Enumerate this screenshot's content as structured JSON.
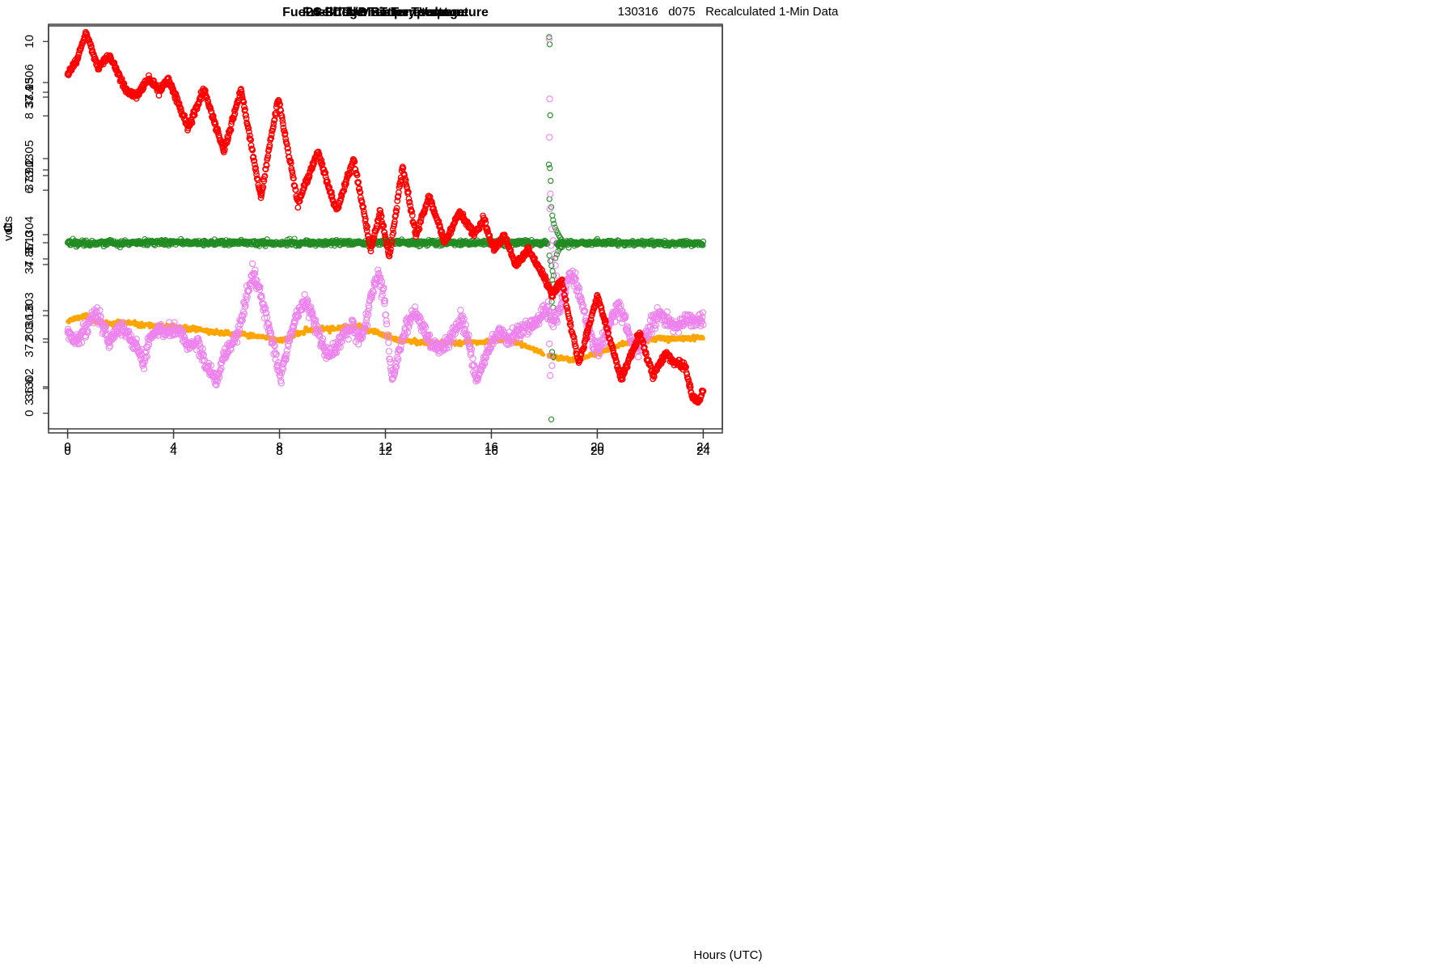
{
  "figure": {
    "title": "130316   d075   Recalculated 1-Min Data",
    "xlabel": "Hours (UTC)",
    "background": "#ffffff",
    "axis_color": "#3d3d3d"
  },
  "chart_data": [
    {
      "id": "fridge-temperature",
      "type": "scatter",
      "title": "Fridge Temperature",
      "ylabel": "C",
      "row": "top",
      "color": "#FFA500",
      "marker": "filled-circle",
      "marker_radius": 2.4,
      "stroke_width": 0,
      "samples_per_hour": 60,
      "noise_sigma": 0.03,
      "seed": 11,
      "xlim": [
        -0.72,
        24.72
      ],
      "xticks": [
        0,
        4,
        8,
        12,
        16,
        20,
        24
      ],
      "xtick_labels": [
        "0",
        "4",
        "8",
        "12",
        "16",
        "20",
        "24"
      ],
      "ylim": [
        -0.42,
        10.42
      ],
      "yticks": [
        0,
        2,
        4,
        6,
        8,
        10
      ],
      "ytick_labels": [
        "0",
        "2",
        "4",
        "6",
        "8",
        "10"
      ],
      "gaps": [
        [
          17.98,
          18.14
        ]
      ],
      "keypoints": [
        [
          0,
          2.5
        ],
        [
          0.2,
          2.53
        ],
        [
          0.45,
          2.58
        ],
        [
          0.65,
          2.62
        ],
        [
          0.9,
          2.55
        ],
        [
          1.15,
          2.46
        ],
        [
          1.35,
          2.42
        ],
        [
          1.6,
          2.4
        ],
        [
          1.85,
          2.44
        ],
        [
          2.1,
          2.43
        ],
        [
          2.4,
          2.42
        ],
        [
          2.7,
          2.38
        ],
        [
          3.0,
          2.35
        ],
        [
          3.3,
          2.34
        ],
        [
          3.6,
          2.32
        ],
        [
          3.9,
          2.33
        ],
        [
          4.2,
          2.3
        ],
        [
          4.5,
          2.26
        ],
        [
          4.75,
          2.29
        ],
        [
          5.05,
          2.25
        ],
        [
          5.35,
          2.2
        ],
        [
          5.65,
          2.17
        ],
        [
          5.95,
          2.16
        ],
        [
          6.25,
          2.12
        ],
        [
          6.55,
          2.11
        ],
        [
          6.85,
          2.1
        ],
        [
          7.15,
          2.06
        ],
        [
          7.45,
          2.04
        ],
        [
          7.8,
          1.97
        ],
        [
          8.1,
          1.98
        ],
        [
          8.4,
          2.05
        ],
        [
          8.7,
          2.14
        ],
        [
          9.0,
          2.21
        ],
        [
          9.3,
          2.25
        ],
        [
          9.6,
          2.27
        ],
        [
          9.9,
          2.27
        ],
        [
          10.2,
          2.28
        ],
        [
          10.5,
          2.3
        ],
        [
          10.75,
          2.33
        ],
        [
          11.1,
          2.3
        ],
        [
          11.4,
          2.22
        ],
        [
          11.7,
          2.16
        ],
        [
          12.0,
          2.1
        ],
        [
          12.3,
          2.02
        ],
        [
          12.6,
          1.97
        ],
        [
          12.9,
          1.94
        ],
        [
          13.2,
          1.92
        ],
        [
          13.5,
          1.9
        ],
        [
          13.8,
          1.88
        ],
        [
          14.1,
          1.9
        ],
        [
          14.4,
          1.92
        ],
        [
          14.7,
          1.89
        ],
        [
          15.0,
          1.91
        ],
        [
          15.3,
          1.92
        ],
        [
          15.6,
          1.91
        ],
        [
          15.9,
          1.93
        ],
        [
          16.2,
          1.97
        ],
        [
          16.45,
          2.0
        ],
        [
          16.75,
          1.95
        ],
        [
          17.05,
          1.87
        ],
        [
          17.35,
          1.79
        ],
        [
          17.65,
          1.71
        ],
        [
          17.95,
          1.62
        ],
        [
          18.15,
          1.53
        ],
        [
          18.45,
          1.51
        ],
        [
          18.75,
          1.48
        ],
        [
          19.0,
          1.45
        ],
        [
          19.3,
          1.46
        ],
        [
          19.6,
          1.52
        ],
        [
          19.9,
          1.6
        ],
        [
          20.2,
          1.68
        ],
        [
          20.5,
          1.76
        ],
        [
          20.8,
          1.83
        ],
        [
          21.1,
          1.88
        ],
        [
          21.4,
          1.93
        ],
        [
          21.7,
          1.96
        ],
        [
          22.0,
          1.99
        ],
        [
          22.3,
          2.01
        ],
        [
          22.6,
          2.01
        ],
        [
          22.9,
          2.0
        ],
        [
          23.2,
          2.01
        ],
        [
          23.5,
          2.03
        ],
        [
          23.8,
          2.04
        ],
        [
          24,
          2.05
        ]
      ],
      "outliers": []
    },
    {
      "id": "fuel-cell-mpt-temperature",
      "type": "scatter",
      "title": "Fuel Cell MPT Temperature",
      "ylabel": "C",
      "row": "top",
      "color": "#228B22",
      "marker": "open-circle",
      "marker_radius": 3.1,
      "stroke_width": 1.1,
      "samples_per_hour": 60,
      "noise_sigma": 0.0035,
      "seed": 22,
      "xlim": [
        -0.72,
        24.72
      ],
      "xticks": [
        0,
        4,
        8,
        12,
        16,
        20,
        24
      ],
      "xtick_labels": [
        "0",
        "4",
        "8",
        "12",
        "16",
        "20",
        "24"
      ],
      "ylim": [
        36.4889,
        37.5956
      ],
      "yticks": [
        36.6,
        36.8,
        37.0,
        37.2,
        37.4
      ],
      "ytick_labels": [
        "36.6",
        "36.8",
        "37.0",
        "37.2",
        "37.4"
      ],
      "gaps": [
        [
          18.12,
          18.45
        ]
      ],
      "keypoints": [
        [
          0,
          37.0
        ],
        [
          2,
          36.999
        ],
        [
          4,
          37.001
        ],
        [
          6,
          37.0
        ],
        [
          8,
          36.999
        ],
        [
          10,
          37.0
        ],
        [
          12,
          37.001
        ],
        [
          14,
          36.999
        ],
        [
          16,
          37.0
        ],
        [
          17.9,
          37.0
        ],
        [
          18.6,
          36.998
        ],
        [
          19,
          36.999
        ],
        [
          20,
          37.0
        ],
        [
          22,
          36.999
        ],
        [
          24,
          36.998
        ]
      ],
      "outliers": [
        [
          18.18,
          37.565
        ],
        [
          18.2,
          37.545
        ],
        [
          18.22,
          37.35
        ],
        [
          18.17,
          37.215
        ],
        [
          18.21,
          37.205
        ],
        [
          18.24,
          37.17
        ],
        [
          18.19,
          37.12
        ],
        [
          18.26,
          37.098
        ],
        [
          18.3,
          37.075
        ],
        [
          18.33,
          37.062
        ],
        [
          18.36,
          37.052
        ],
        [
          18.4,
          37.042
        ],
        [
          18.45,
          37.034
        ],
        [
          18.5,
          37.027
        ],
        [
          18.55,
          37.02
        ],
        [
          18.6,
          37.014
        ],
        [
          18.65,
          37.009
        ],
        [
          18.19,
          36.965
        ],
        [
          18.23,
          36.95
        ],
        [
          18.27,
          36.937
        ],
        [
          18.31,
          36.922
        ],
        [
          18.35,
          36.91
        ],
        [
          18.3,
          36.898
        ],
        [
          18.34,
          36.886
        ],
        [
          18.38,
          36.873
        ],
        [
          18.28,
          36.838
        ],
        [
          18.33,
          36.822
        ],
        [
          18.24,
          36.795
        ],
        [
          18.29,
          36.7
        ],
        [
          18.34,
          36.686
        ],
        [
          18.26,
          36.515
        ],
        [
          18.42,
          36.958
        ],
        [
          18.47,
          36.968
        ],
        [
          18.52,
          36.977
        ],
        [
          18.58,
          36.984
        ],
        [
          18.63,
          36.99
        ]
      ]
    },
    {
      "id": "fuel-cell-thermistor-temperature",
      "type": "scatter",
      "title": "Fuel Cell Thermistor Temperature",
      "ylabel": "C",
      "row": "bottom",
      "color": "#EE82EE",
      "marker": "open-circle",
      "marker_radius": 3.6,
      "stroke_width": 1.1,
      "samples_per_hour": 60,
      "noise_sigma": 0.0022,
      "seed": 33,
      "xlim": [
        -0.72,
        24.72
      ],
      "xticks": [
        0,
        4,
        8,
        12,
        16,
        20,
        24
      ],
      "xtick_labels": [
        "0",
        "4",
        "8",
        "12",
        "16",
        "20",
        "24"
      ],
      "ylim": [
        37.7456,
        37.9908
      ],
      "yticks": [
        37.8,
        37.85,
        37.9,
        37.95
      ],
      "ytick_labels": [
        "37.80",
        "37.85",
        "37.90",
        "37.95"
      ],
      "gaps": [],
      "keypoints": [
        [
          0,
          37.806
        ],
        [
          0.3,
          37.8
        ],
        [
          0.6,
          37.806
        ],
        [
          0.9,
          37.814
        ],
        [
          1.1,
          37.818
        ],
        [
          1.35,
          37.808
        ],
        [
          1.6,
          37.8
        ],
        [
          1.9,
          37.81
        ],
        [
          2.15,
          37.807
        ],
        [
          2.45,
          37.8
        ],
        [
          2.7,
          37.793
        ],
        [
          2.9,
          37.788
        ],
        [
          3.1,
          37.803
        ],
        [
          3.4,
          37.808
        ],
        [
          3.7,
          37.806
        ],
        [
          4.0,
          37.808
        ],
        [
          4.3,
          37.806
        ],
        [
          4.6,
          37.797
        ],
        [
          4.9,
          37.8
        ],
        [
          5.15,
          37.79
        ],
        [
          5.45,
          37.78
        ],
        [
          5.65,
          37.776
        ],
        [
          5.9,
          37.792
        ],
        [
          6.2,
          37.799
        ],
        [
          6.5,
          37.808
        ],
        [
          6.8,
          37.83
        ],
        [
          7.0,
          37.841
        ],
        [
          7.2,
          37.833
        ],
        [
          7.5,
          37.816
        ],
        [
          7.8,
          37.796
        ],
        [
          8.05,
          37.778
        ],
        [
          8.35,
          37.8
        ],
        [
          8.65,
          37.816
        ],
        [
          8.95,
          37.825
        ],
        [
          9.25,
          37.816
        ],
        [
          9.55,
          37.801
        ],
        [
          9.85,
          37.791
        ],
        [
          10.15,
          37.797
        ],
        [
          10.45,
          37.807
        ],
        [
          10.75,
          37.81
        ],
        [
          11.05,
          37.801
        ],
        [
          11.35,
          37.818
        ],
        [
          11.6,
          37.836
        ],
        [
          11.75,
          37.84
        ],
        [
          11.95,
          37.828
        ],
        [
          12.1,
          37.8
        ],
        [
          12.25,
          37.776
        ],
        [
          12.5,
          37.794
        ],
        [
          12.8,
          37.81
        ],
        [
          13.1,
          37.818
        ],
        [
          13.4,
          37.809
        ],
        [
          13.7,
          37.8
        ],
        [
          14.0,
          37.795
        ],
        [
          14.3,
          37.798
        ],
        [
          14.6,
          37.806
        ],
        [
          14.9,
          37.814
        ],
        [
          15.15,
          37.8
        ],
        [
          15.45,
          37.776
        ],
        [
          15.7,
          37.788
        ],
        [
          16.0,
          37.8
        ],
        [
          16.3,
          37.807
        ],
        [
          16.6,
          37.801
        ],
        [
          16.9,
          37.804
        ],
        [
          17.2,
          37.809
        ],
        [
          17.5,
          37.811
        ],
        [
          17.8,
          37.814
        ],
        [
          18.0,
          37.818
        ],
        [
          18.15,
          37.82
        ],
        [
          18.35,
          37.812
        ],
        [
          18.6,
          37.82
        ],
        [
          18.8,
          37.833
        ],
        [
          19.0,
          37.841
        ],
        [
          19.15,
          37.838
        ],
        [
          19.35,
          37.828
        ],
        [
          19.6,
          37.812
        ],
        [
          19.85,
          37.797
        ],
        [
          20.1,
          37.797
        ],
        [
          20.35,
          37.806
        ],
        [
          20.6,
          37.817
        ],
        [
          20.8,
          37.821
        ],
        [
          21.05,
          37.813
        ],
        [
          21.3,
          37.801
        ],
        [
          21.55,
          37.797
        ],
        [
          21.8,
          37.803
        ],
        [
          22.1,
          37.812
        ],
        [
          22.35,
          37.818
        ],
        [
          22.6,
          37.814
        ],
        [
          22.9,
          37.809
        ],
        [
          23.2,
          37.812
        ],
        [
          23.5,
          37.815
        ],
        [
          23.75,
          37.812
        ],
        [
          24,
          37.815
        ]
      ],
      "outliers": [
        [
          18.18,
          37.982
        ],
        [
          18.2,
          37.946
        ],
        [
          18.19,
          37.923
        ],
        [
          18.23,
          37.889
        ],
        [
          18.21,
          37.88
        ],
        [
          18.28,
          37.868
        ],
        [
          18.25,
          37.858
        ],
        [
          18.3,
          37.849
        ],
        [
          18.33,
          37.861
        ],
        [
          18.38,
          37.853
        ],
        [
          18.42,
          37.846
        ],
        [
          18.46,
          37.84
        ],
        [
          18.5,
          37.835
        ],
        [
          18.55,
          37.83
        ],
        [
          18.19,
          37.799
        ],
        [
          18.24,
          37.792
        ],
        [
          18.29,
          37.786
        ],
        [
          18.22,
          37.78
        ]
      ]
    },
    {
      "id": "battery-voltage",
      "type": "scatter",
      "title": "24-Bit A/D Battery Voltage",
      "ylabel": "volts",
      "row": "bottom",
      "color": "#FF0000",
      "marker": "open-circle",
      "marker_radius": 3.2,
      "stroke_width": 1.4,
      "samples_per_hour": 60,
      "noise_sigma": 2.2e-06,
      "seed": 44,
      "xlim": [
        -0.72,
        24.72
      ],
      "xticks": [
        0,
        4,
        8,
        12,
        16,
        20,
        24
      ],
      "xtick_labels": [
        "0",
        "4",
        "8",
        "12",
        "16",
        "20",
        "24"
      ],
      "ylim": [
        3.1301394,
        3.1306766
      ],
      "yticks": [
        3.1302,
        3.1303,
        3.1304,
        3.1305,
        3.1306
      ],
      "ytick_labels": [
        "3.1302",
        "3.1303",
        "3.1304",
        "3.1305",
        "3.1306"
      ],
      "gaps": [],
      "keypoints": [
        [
          0,
          3.13061
        ],
        [
          0.35,
          3.13063
        ],
        [
          0.7,
          3.130665
        ],
        [
          1.15,
          3.13062
        ],
        [
          1.6,
          3.130635
        ],
        [
          2.2,
          3.13059
        ],
        [
          2.6,
          3.13058
        ],
        [
          3.05,
          3.130605
        ],
        [
          3.45,
          3.13059
        ],
        [
          3.8,
          3.130605
        ],
        [
          4.55,
          3.13054
        ],
        [
          5.15,
          3.13059
        ],
        [
          5.9,
          3.13051
        ],
        [
          6.55,
          3.13059
        ],
        [
          7.3,
          3.13045
        ],
        [
          7.95,
          3.13058
        ],
        [
          8.7,
          3.13044
        ],
        [
          9.45,
          3.13051
        ],
        [
          10.15,
          3.13043
        ],
        [
          10.8,
          3.1305
        ],
        [
          11.45,
          3.13038
        ],
        [
          11.8,
          3.13043
        ],
        [
          12.15,
          3.13037
        ],
        [
          12.65,
          3.13049
        ],
        [
          13.15,
          3.1304
        ],
        [
          13.65,
          3.13045
        ],
        [
          14.25,
          3.13039
        ],
        [
          14.8,
          3.13043
        ],
        [
          15.35,
          3.1304
        ],
        [
          15.7,
          3.13042
        ],
        [
          16.1,
          3.13038
        ],
        [
          16.5,
          3.1304
        ],
        [
          16.9,
          3.13036
        ],
        [
          17.4,
          3.13038
        ],
        [
          17.9,
          3.13035
        ],
        [
          18.3,
          3.13032
        ],
        [
          18.65,
          3.13034
        ],
        [
          19.3,
          3.13023
        ],
        [
          20.0,
          3.13032
        ],
        [
          20.9,
          3.13021
        ],
        [
          21.6,
          3.13027
        ],
        [
          22.1,
          3.130215
        ],
        [
          22.6,
          3.130245
        ],
        [
          23.0,
          3.13023
        ],
        [
          23.3,
          3.130228
        ],
        [
          23.6,
          3.130185
        ],
        [
          23.85,
          3.13018
        ],
        [
          24,
          3.130195
        ]
      ],
      "outliers": []
    }
  ]
}
